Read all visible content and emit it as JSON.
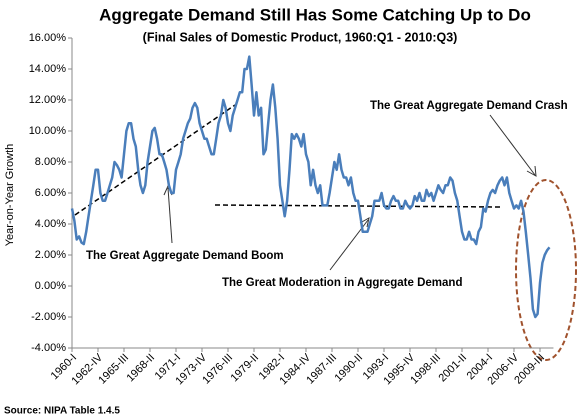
{
  "chart_data": {
    "type": "line",
    "title": "Aggregate Demand Still Has Some Catching Up to Do",
    "subtitle": "(Final Sales of Domestic Product, 1960:Q1 - 2010:Q3)",
    "y_label": "Year-on-Year Growth",
    "source": "Source: NIPA Table 1.4.5",
    "annotations": [
      "The Great Aggregate Demand Boom",
      "The Great Moderation in Aggregate Demand",
      "The Great Aggregate Demand Crash"
    ],
    "color": "#4a7ebb",
    "categories": [
      "1960-I",
      null,
      null,
      null,
      null,
      null,
      null,
      null,
      null,
      null,
      null,
      "1962-IV",
      null,
      null,
      null,
      null,
      null,
      null,
      null,
      null,
      null,
      null,
      "1965-III",
      null,
      null,
      null,
      null,
      null,
      null,
      null,
      null,
      null,
      null,
      "1968-II",
      null,
      null,
      null,
      null,
      null,
      null,
      null,
      null,
      null,
      null,
      "1971-I",
      null,
      null,
      null,
      null,
      null,
      null,
      null,
      null,
      null,
      null,
      "1973-IV",
      null,
      null,
      null,
      null,
      null,
      null,
      null,
      null,
      null,
      null,
      "1976-III",
      null,
      null,
      null,
      null,
      null,
      null,
      null,
      null,
      null,
      null,
      "1979-II",
      null,
      null,
      null,
      null,
      null,
      null,
      null,
      null,
      null,
      null,
      "1982-I",
      null,
      null,
      null,
      null,
      null,
      null,
      null,
      null,
      null,
      null,
      "1984-IV",
      null,
      null,
      null,
      null,
      null,
      null,
      null,
      null,
      null,
      null,
      "1987-III",
      null,
      null,
      null,
      null,
      null,
      null,
      null,
      null,
      null,
      null,
      "1990-II",
      null,
      null,
      null,
      null,
      null,
      null,
      null,
      null,
      null,
      null,
      "1993-I",
      null,
      null,
      null,
      null,
      null,
      null,
      null,
      null,
      null,
      null,
      "1995-IV",
      null,
      null,
      null,
      null,
      null,
      null,
      null,
      null,
      null,
      null,
      "1998-III",
      null,
      null,
      null,
      null,
      null,
      null,
      null,
      null,
      null,
      null,
      "2001-II",
      null,
      null,
      null,
      null,
      null,
      null,
      null,
      null,
      null,
      null,
      "2004-I",
      null,
      null,
      null,
      null,
      null,
      null,
      null,
      null,
      null,
      null,
      "2006-IV",
      null,
      null,
      null,
      null,
      null,
      null,
      null,
      null,
      null,
      null,
      "2009-III",
      null,
      null,
      null,
      null
    ],
    "values": [
      5.0,
      4.2,
      3.0,
      3.2,
      2.8,
      2.7,
      3.5,
      4.5,
      5.5,
      6.5,
      7.5,
      7.5,
      6.0,
      5.5,
      5.5,
      6.0,
      6.5,
      7.0,
      8.0,
      7.8,
      7.5,
      7.0,
      8.5,
      10.0,
      10.5,
      10.5,
      9.5,
      9.0,
      7.5,
      6.5,
      6.0,
      6.5,
      8.0,
      9.0,
      10.0,
      10.2,
      9.5,
      8.5,
      8.5,
      8.0,
      7.5,
      6.5,
      6.0,
      6.0,
      7.5,
      8.0,
      8.5,
      9.5,
      10.0,
      10.5,
      10.8,
      11.5,
      11.8,
      11.5,
      10.5,
      10.0,
      9.5,
      9.5,
      9.0,
      8.5,
      8.5,
      9.5,
      10.5,
      11.0,
      12.0,
      11.5,
      10.5,
      10.0,
      11.0,
      11.5,
      12.0,
      12.5,
      12.5,
      14.0,
      14.0,
      14.8,
      13.0,
      11.0,
      12.5,
      11.0,
      11.5,
      8.5,
      8.8,
      10.5,
      12.0,
      13.0,
      11.5,
      9.5,
      6.5,
      5.5,
      4.5,
      5.5,
      7.5,
      9.8,
      9.5,
      9.8,
      9.5,
      9.0,
      9.8,
      8.5,
      8.0,
      6.5,
      7.5,
      6.5,
      6.0,
      6.5,
      5.2,
      5.2,
      5.2,
      6.0,
      7.0,
      8.0,
      7.5,
      8.5,
      7.5,
      7.0,
      7.0,
      6.5,
      7.0,
      6.0,
      5.5,
      5.5,
      4.5,
      3.5,
      3.5,
      3.5,
      4.0,
      4.5,
      5.5,
      5.5,
      5.5,
      6.0,
      5.2,
      5.0,
      5.0,
      5.5,
      5.8,
      5.5,
      5.5,
      5.0,
      5.0,
      5.5,
      5.2,
      5.0,
      5.2,
      5.8,
      5.5,
      6.0,
      5.5,
      5.5,
      6.2,
      5.8,
      6.0,
      5.5,
      6.0,
      6.5,
      6.2,
      6.0,
      6.5,
      6.5,
      7.0,
      6.8,
      6.0,
      5.5,
      4.5,
      3.5,
      3.0,
      3.0,
      3.5,
      3.0,
      3.0,
      2.7,
      3.5,
      3.8,
      5.0,
      4.8,
      5.5,
      6.0,
      6.2,
      6.0,
      6.5,
      6.8,
      7.0,
      6.5,
      7.0,
      6.0,
      5.5,
      5.0,
      5.2,
      5.0,
      5.5,
      4.8,
      3.5,
      2.0,
      0.5,
      -1.5,
      -2.0,
      -1.8,
      0.2,
      1.5,
      2.0,
      2.3,
      2.5
    ],
    "ylim": [
      -4,
      16
    ],
    "yticks": [
      {
        "value": -4,
        "label": "-4.00%"
      },
      {
        "value": -2,
        "label": "-2.00%"
      },
      {
        "value": 0,
        "label": "0.00%"
      },
      {
        "value": 2,
        "label": "2.00%"
      },
      {
        "value": 4,
        "label": "4.00%"
      },
      {
        "value": 6,
        "label": "6.00%"
      },
      {
        "value": 8,
        "label": "8.00%"
      },
      {
        "value": 10,
        "label": "10.00%"
      },
      {
        "value": 12,
        "label": "12.00%"
      },
      {
        "value": 14,
        "label": "14.00%"
      },
      {
        "value": 16,
        "label": "16.00%"
      }
    ]
  }
}
